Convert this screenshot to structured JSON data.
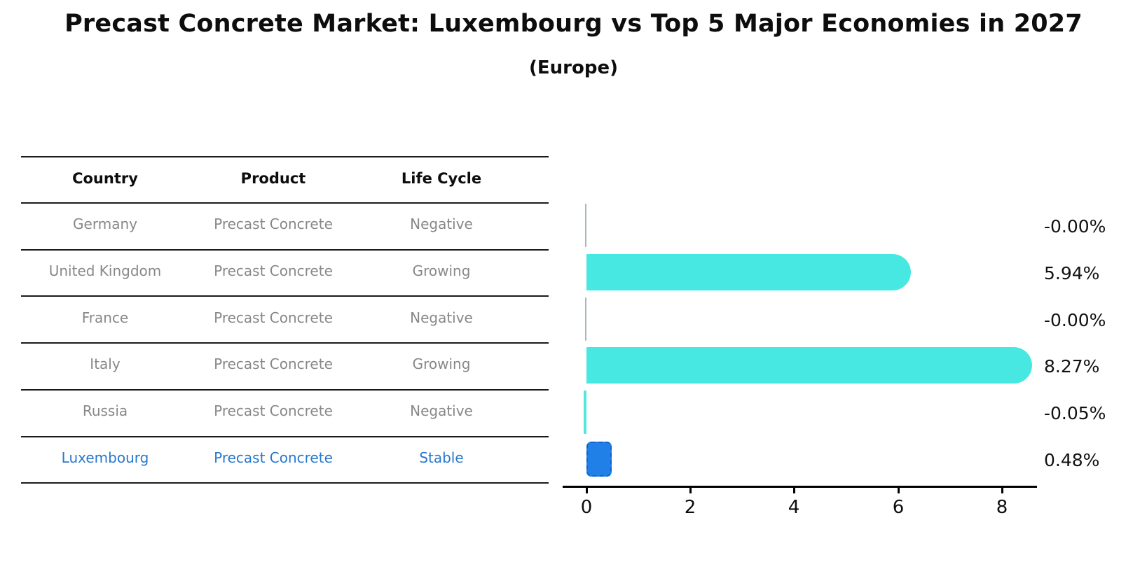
{
  "title": "Precast Concrete Market: Luxembourg vs Top 5 Major Economies in 2027",
  "subtitle": "(Europe)",
  "table": {
    "headers": [
      "Country",
      "Product",
      "Life Cycle"
    ],
    "rows": [
      {
        "country": "Germany",
        "product": "Precast Concrete",
        "life_cycle": "Negative",
        "highlight": false
      },
      {
        "country": "United Kingdom",
        "product": "Precast Concrete",
        "life_cycle": "Growing",
        "highlight": false
      },
      {
        "country": "France",
        "product": "Precast Concrete",
        "life_cycle": "Negative",
        "highlight": false
      },
      {
        "country": "Italy",
        "product": "Precast Concrete",
        "life_cycle": "Growing",
        "highlight": false
      },
      {
        "country": "Russia",
        "product": "Precast Concrete",
        "life_cycle": "Negative",
        "highlight": false
      },
      {
        "country": "Luxembourg",
        "product": "Precast Concrete",
        "life_cycle": "Stable",
        "highlight": true
      }
    ]
  },
  "chart_data": {
    "type": "bar",
    "orientation": "horizontal",
    "title": "Precast Concrete Market: Luxembourg vs Top 5 Major Economies in 2027",
    "subtitle": "(Europe)",
    "categories": [
      "Germany",
      "United Kingdom",
      "France",
      "Italy",
      "Russia",
      "Luxembourg"
    ],
    "values": [
      -0.0,
      5.94,
      -0.0,
      8.27,
      -0.05,
      0.48
    ],
    "value_labels": [
      "-0.00%",
      "5.94%",
      "-0.00%",
      "8.27%",
      "-0.05%",
      "0.48%"
    ],
    "x_ticks": [
      "0",
      "2",
      "4",
      "6",
      "8"
    ],
    "xlim": [
      -0.45,
      8.65
    ],
    "grid": false,
    "legend": "none",
    "bar_color": "#48e8e2",
    "highlight_bar_color": "#2080e8",
    "highlight_index": 5
  },
  "colors": {
    "bar_cyan": "#48e8e2",
    "bar_blue": "#2080e8",
    "highlight_text": "#2878cd",
    "table_text": "#888888",
    "heading_text": "#0d0d0d",
    "line": "#1a1a1a"
  }
}
